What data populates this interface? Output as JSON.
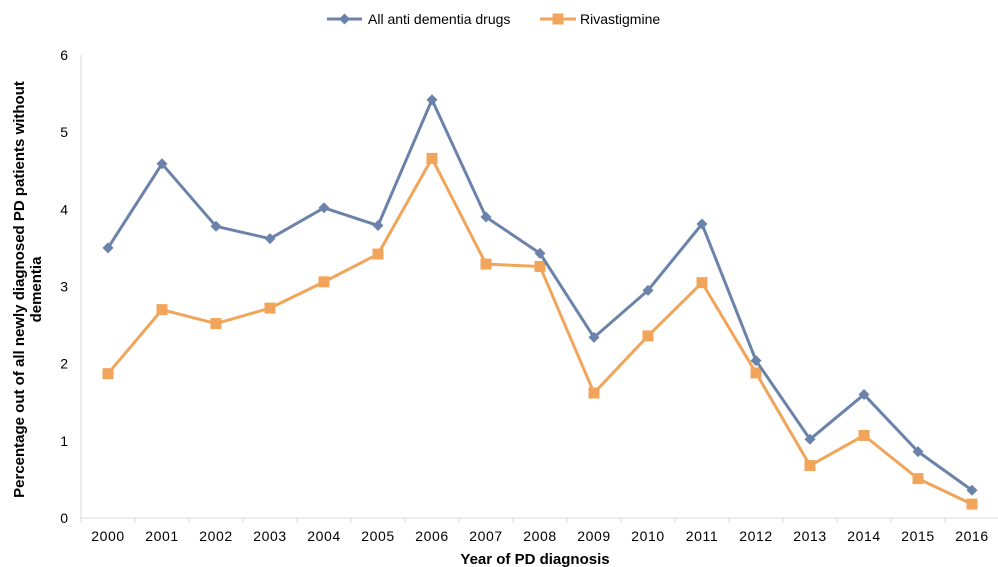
{
  "chart_data": {
    "type": "line",
    "title": "",
    "xlabel": "Year of PD diagnosis",
    "ylabel_lines": [
      "Percentage out of all newly diagnosed PD patients without",
      "dementia"
    ],
    "x": [
      "2000",
      "2001",
      "2002",
      "2003",
      "2004",
      "2005",
      "2006",
      "2007",
      "2008",
      "2009",
      "2010",
      "2011",
      "2012",
      "2013",
      "2014",
      "2015",
      "2016"
    ],
    "ylim": [
      0,
      6
    ],
    "yticks": [
      "0",
      "1",
      "2",
      "3",
      "4",
      "5",
      "6"
    ],
    "grid": false,
    "legend_position": "top",
    "series": [
      {
        "name": "All anti dementia drugs",
        "color": "#6b82aa",
        "marker": "diamond",
        "values": [
          3.5,
          4.59,
          3.78,
          3.62,
          4.02,
          3.79,
          5.42,
          3.9,
          3.43,
          2.34,
          2.95,
          3.81,
          2.04,
          1.02,
          1.6,
          0.86,
          0.36
        ]
      },
      {
        "name": "Rivastigmine",
        "color": "#f0a55a",
        "marker": "square",
        "values": [
          1.87,
          2.7,
          2.52,
          2.72,
          3.06,
          3.42,
          4.66,
          3.29,
          3.26,
          1.62,
          2.36,
          3.05,
          1.88,
          0.68,
          1.07,
          0.51,
          0.18
        ]
      }
    ]
  }
}
